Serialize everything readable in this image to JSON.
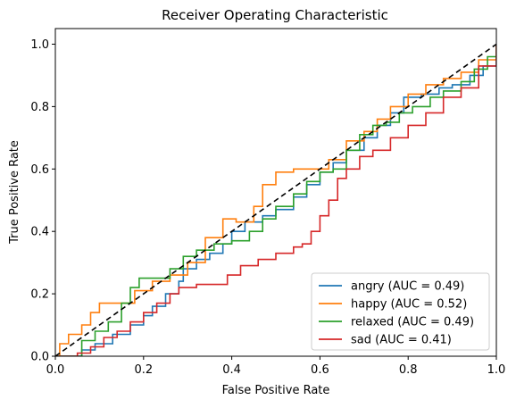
{
  "chart_data": {
    "type": "line",
    "title": "Receiver Operating Characteristic",
    "xlabel": "False Positive Rate",
    "ylabel": "True Positive Rate",
    "xlim": [
      0,
      1
    ],
    "ylim": [
      0,
      1.05
    ],
    "xticks": [
      "0.0",
      "0.2",
      "0.4",
      "0.6",
      "0.8",
      "1.0"
    ],
    "yticks": [
      "0.0",
      "0.2",
      "0.4",
      "0.6",
      "0.8",
      "1.0"
    ],
    "legend_position": "lower-right",
    "grid": false,
    "series": [
      {
        "name": "angry (AUC = 0.49)",
        "color": "#1f77b4",
        "points": [
          [
            0,
            0
          ],
          [
            0.03,
            0
          ],
          [
            0.06,
            0.02
          ],
          [
            0.09,
            0.04
          ],
          [
            0.13,
            0.07
          ],
          [
            0.17,
            0.1
          ],
          [
            0.2,
            0.13
          ],
          [
            0.22,
            0.16
          ],
          [
            0.25,
            0.2
          ],
          [
            0.28,
            0.24
          ],
          [
            0.29,
            0.28
          ],
          [
            0.32,
            0.31
          ],
          [
            0.35,
            0.33
          ],
          [
            0.38,
            0.36
          ],
          [
            0.4,
            0.4
          ],
          [
            0.43,
            0.43
          ],
          [
            0.47,
            0.45
          ],
          [
            0.5,
            0.47
          ],
          [
            0.54,
            0.51
          ],
          [
            0.57,
            0.55
          ],
          [
            0.6,
            0.59
          ],
          [
            0.63,
            0.62
          ],
          [
            0.66,
            0.66
          ],
          [
            0.7,
            0.7
          ],
          [
            0.73,
            0.74
          ],
          [
            0.76,
            0.78
          ],
          [
            0.79,
            0.83
          ],
          [
            0.83,
            0.84
          ],
          [
            0.87,
            0.86
          ],
          [
            0.9,
            0.87
          ],
          [
            0.94,
            0.9
          ],
          [
            0.97,
            0.93
          ],
          [
            1,
            1
          ]
        ]
      },
      {
        "name": "happy (AUC = 0.52)",
        "color": "#ff7f0e",
        "points": [
          [
            0,
            0
          ],
          [
            0.01,
            0.04
          ],
          [
            0.03,
            0.07
          ],
          [
            0.06,
            0.1
          ],
          [
            0.08,
            0.14
          ],
          [
            0.1,
            0.17
          ],
          [
            0.15,
            0.17
          ],
          [
            0.18,
            0.21
          ],
          [
            0.22,
            0.24
          ],
          [
            0.26,
            0.26
          ],
          [
            0.3,
            0.3
          ],
          [
            0.34,
            0.38
          ],
          [
            0.38,
            0.44
          ],
          [
            0.41,
            0.43
          ],
          [
            0.45,
            0.48
          ],
          [
            0.47,
            0.55
          ],
          [
            0.5,
            0.59
          ],
          [
            0.54,
            0.6
          ],
          [
            0.58,
            0.6
          ],
          [
            0.62,
            0.63
          ],
          [
            0.66,
            0.69
          ],
          [
            0.7,
            0.72
          ],
          [
            0.73,
            0.76
          ],
          [
            0.76,
            0.8
          ],
          [
            0.8,
            0.84
          ],
          [
            0.84,
            0.87
          ],
          [
            0.88,
            0.89
          ],
          [
            0.92,
            0.91
          ],
          [
            0.96,
            0.95
          ],
          [
            1,
            1
          ]
        ]
      },
      {
        "name": "relaxed (AUC = 0.49)",
        "color": "#2ca02c",
        "points": [
          [
            0,
            0
          ],
          [
            0.03,
            0
          ],
          [
            0.06,
            0.05
          ],
          [
            0.09,
            0.08
          ],
          [
            0.12,
            0.11
          ],
          [
            0.15,
            0.17
          ],
          [
            0.17,
            0.22
          ],
          [
            0.19,
            0.25
          ],
          [
            0.23,
            0.25
          ],
          [
            0.26,
            0.28
          ],
          [
            0.29,
            0.32
          ],
          [
            0.32,
            0.34
          ],
          [
            0.36,
            0.36
          ],
          [
            0.4,
            0.37
          ],
          [
            0.44,
            0.4
          ],
          [
            0.47,
            0.44
          ],
          [
            0.5,
            0.48
          ],
          [
            0.54,
            0.52
          ],
          [
            0.57,
            0.56
          ],
          [
            0.6,
            0.59
          ],
          [
            0.63,
            0.6
          ],
          [
            0.66,
            0.66
          ],
          [
            0.69,
            0.71
          ],
          [
            0.72,
            0.74
          ],
          [
            0.75,
            0.75
          ],
          [
            0.78,
            0.78
          ],
          [
            0.81,
            0.8
          ],
          [
            0.85,
            0.83
          ],
          [
            0.88,
            0.85
          ],
          [
            0.92,
            0.88
          ],
          [
            0.95,
            0.92
          ],
          [
            0.98,
            0.96
          ],
          [
            1,
            1
          ]
        ]
      },
      {
        "name": "sad (AUC = 0.41)",
        "color": "#d62728",
        "points": [
          [
            0,
            0
          ],
          [
            0.03,
            0
          ],
          [
            0.05,
            0.01
          ],
          [
            0.08,
            0.03
          ],
          [
            0.11,
            0.06
          ],
          [
            0.14,
            0.08
          ],
          [
            0.17,
            0.11
          ],
          [
            0.2,
            0.14
          ],
          [
            0.23,
            0.17
          ],
          [
            0.26,
            0.2
          ],
          [
            0.28,
            0.22
          ],
          [
            0.32,
            0.23
          ],
          [
            0.36,
            0.23
          ],
          [
            0.39,
            0.26
          ],
          [
            0.42,
            0.29
          ],
          [
            0.46,
            0.31
          ],
          [
            0.5,
            0.33
          ],
          [
            0.54,
            0.35
          ],
          [
            0.56,
            0.36
          ],
          [
            0.58,
            0.4
          ],
          [
            0.6,
            0.45
          ],
          [
            0.62,
            0.5
          ],
          [
            0.64,
            0.57
          ],
          [
            0.66,
            0.6
          ],
          [
            0.69,
            0.64
          ],
          [
            0.72,
            0.66
          ],
          [
            0.76,
            0.7
          ],
          [
            0.8,
            0.74
          ],
          [
            0.84,
            0.78
          ],
          [
            0.88,
            0.83
          ],
          [
            0.92,
            0.86
          ],
          [
            0.96,
            0.93
          ],
          [
            1,
            1
          ]
        ]
      }
    ],
    "reference_line": {
      "points": [
        [
          0,
          0
        ],
        [
          1,
          1
        ]
      ],
      "color": "#000000",
      "style": "dashed"
    }
  }
}
